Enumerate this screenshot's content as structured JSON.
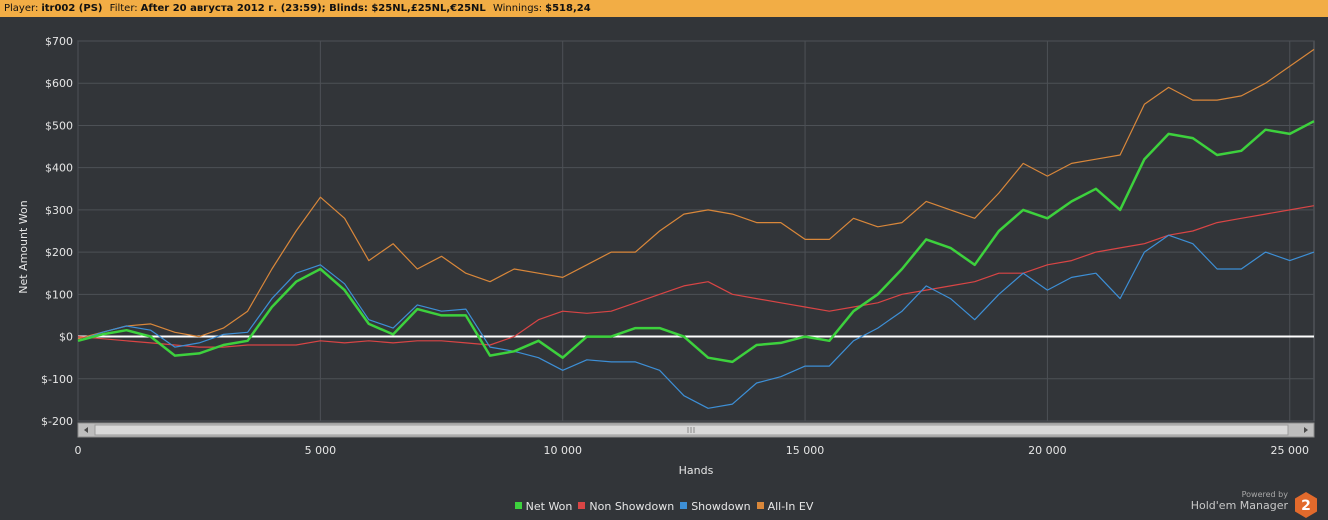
{
  "header": {
    "player_label": "Player:",
    "player_value": "itr002 (PS)",
    "filter_label": "Filter:",
    "filter_value": "After 20 августа 2012 г. (23:59); Blinds: $25NL,£25NL,€25NL",
    "winnings_label": "Winnings:",
    "winnings_value": "$518,24"
  },
  "branding": {
    "powered_by": "Powered by",
    "product": "Hold'em Manager",
    "logo_number": "2"
  },
  "chart_data": {
    "type": "line",
    "xlabel": "Hands",
    "ylabel": "Net Amount Won",
    "xlim": [
      0,
      25500
    ],
    "ylim": [
      -200,
      700
    ],
    "x_ticks": [
      0,
      5000,
      10000,
      15000,
      20000,
      25000
    ],
    "x_tick_labels": [
      "0",
      "5 000",
      "10 000",
      "15 000",
      "20 000",
      "25 000"
    ],
    "y_ticks": [
      -200,
      -100,
      0,
      100,
      200,
      300,
      400,
      500,
      600,
      700
    ],
    "y_tick_labels": [
      "$-200",
      "$-100",
      "$0",
      "$100",
      "$200",
      "$300",
      "$400",
      "$500",
      "$600",
      "$700"
    ],
    "grid": true,
    "zero_line": true,
    "legend_position": "bottom-center",
    "series": [
      {
        "name": "Net Won",
        "color": "#3dd13d",
        "x": [
          0,
          500,
          1000,
          1500,
          2000,
          2500,
          3000,
          3500,
          4000,
          4500,
          5000,
          5500,
          6000,
          6500,
          7000,
          7500,
          8000,
          8500,
          9000,
          9500,
          10000,
          10500,
          11000,
          11500,
          12000,
          12500,
          13000,
          13500,
          14000,
          14500,
          15000,
          15500,
          16000,
          16500,
          17000,
          17500,
          18000,
          18500,
          19000,
          19500,
          20000,
          20500,
          21000,
          21500,
          22000,
          22500,
          23000,
          23500,
          24000,
          24500,
          25000,
          25500
        ],
        "values": [
          -10,
          5,
          15,
          0,
          -45,
          -40,
          -20,
          -10,
          70,
          130,
          160,
          110,
          30,
          5,
          65,
          50,
          50,
          -45,
          -35,
          -10,
          -50,
          0,
          0,
          20,
          20,
          0,
          -50,
          -60,
          -20,
          -15,
          0,
          -10,
          60,
          100,
          160,
          230,
          210,
          170,
          250,
          300,
          280,
          320,
          350,
          300,
          420,
          480,
          470,
          430,
          440,
          490,
          480,
          510
        ]
      },
      {
        "name": "Non Showdown",
        "color": "#d94545",
        "x": [
          0,
          500,
          1000,
          1500,
          2000,
          2500,
          3000,
          3500,
          4000,
          4500,
          5000,
          5500,
          6000,
          6500,
          7000,
          7500,
          8000,
          8500,
          9000,
          9500,
          10000,
          10500,
          11000,
          11500,
          12000,
          12500,
          13000,
          13500,
          14000,
          14500,
          15000,
          15500,
          16000,
          16500,
          17000,
          17500,
          18000,
          18500,
          19000,
          19500,
          20000,
          20500,
          21000,
          21500,
          22000,
          22500,
          23000,
          23500,
          24000,
          24500,
          25000,
          25500
        ],
        "values": [
          0,
          -5,
          -10,
          -15,
          -20,
          -25,
          -25,
          -20,
          -20,
          -20,
          -10,
          -15,
          -10,
          -15,
          -10,
          -10,
          -15,
          -20,
          0,
          40,
          60,
          55,
          60,
          80,
          100,
          120,
          130,
          100,
          90,
          80,
          70,
          60,
          70,
          80,
          100,
          110,
          120,
          130,
          150,
          150,
          170,
          180,
          200,
          210,
          220,
          240,
          250,
          270,
          280,
          290,
          300,
          310
        ]
      },
      {
        "name": "Showdown",
        "color": "#3d8fd6",
        "x": [
          0,
          500,
          1000,
          1500,
          2000,
          2500,
          3000,
          3500,
          4000,
          4500,
          5000,
          5500,
          6000,
          6500,
          7000,
          7500,
          8000,
          8500,
          9000,
          9500,
          10000,
          10500,
          11000,
          11500,
          12000,
          12500,
          13000,
          13500,
          14000,
          14500,
          15000,
          15500,
          16000,
          16500,
          17000,
          17500,
          18000,
          18500,
          19000,
          19500,
          20000,
          20500,
          21000,
          21500,
          22000,
          22500,
          23000,
          23500,
          24000,
          24500,
          25000,
          25500
        ],
        "values": [
          -10,
          10,
          25,
          15,
          -25,
          -15,
          5,
          10,
          90,
          150,
          170,
          125,
          40,
          20,
          75,
          60,
          65,
          -25,
          -35,
          -50,
          -80,
          -55,
          -60,
          -60,
          -80,
          -140,
          -170,
          -160,
          -110,
          -95,
          -70,
          -70,
          -10,
          20,
          60,
          120,
          90,
          40,
          100,
          150,
          110,
          140,
          150,
          90,
          200,
          240,
          220,
          160,
          160,
          200,
          180,
          200
        ]
      },
      {
        "name": "All-In EV",
        "color": "#d9873a",
        "x": [
          0,
          500,
          1000,
          1500,
          2000,
          2500,
          3000,
          3500,
          4000,
          4500,
          5000,
          5500,
          6000,
          6500,
          7000,
          7500,
          8000,
          8500,
          9000,
          9500,
          10000,
          10500,
          11000,
          11500,
          12000,
          12500,
          13000,
          13500,
          14000,
          14500,
          15000,
          15500,
          16000,
          16500,
          17000,
          17500,
          18000,
          18500,
          19000,
          19500,
          20000,
          20500,
          21000,
          21500,
          22000,
          22500,
          23000,
          23500,
          24000,
          24500,
          25000,
          25500
        ],
        "values": [
          -5,
          10,
          25,
          30,
          10,
          0,
          20,
          60,
          160,
          250,
          330,
          280,
          180,
          220,
          160,
          190,
          150,
          130,
          160,
          150,
          140,
          170,
          200,
          200,
          250,
          290,
          300,
          290,
          270,
          270,
          230,
          230,
          280,
          260,
          270,
          320,
          300,
          280,
          340,
          410,
          380,
          410,
          420,
          430,
          550,
          590,
          560,
          560,
          570,
          600,
          640,
          680
        ]
      }
    ]
  }
}
